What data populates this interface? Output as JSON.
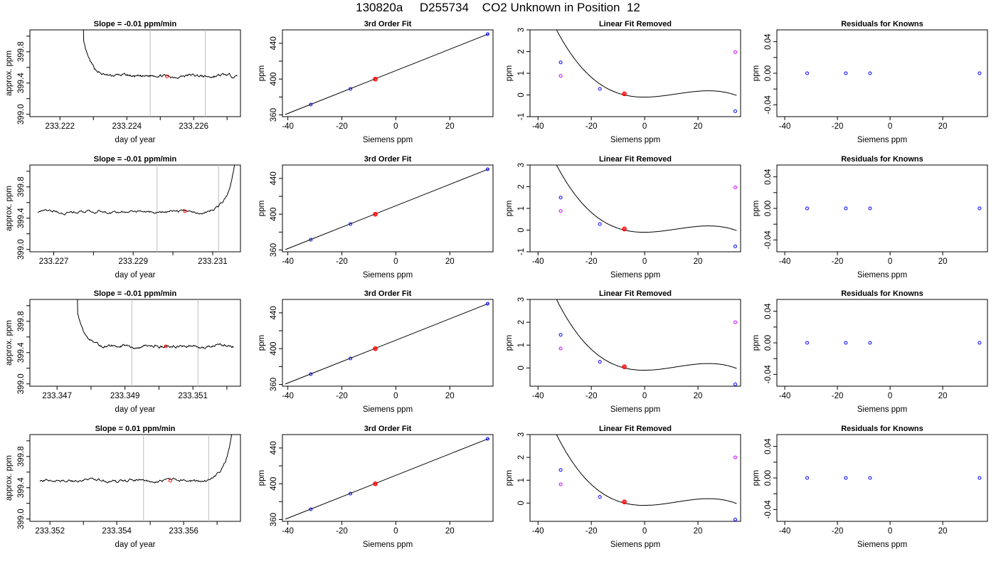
{
  "figure": {
    "title": "130820a     D255734    CO2 Unknown in Position  12",
    "colors": {
      "line": "#000000",
      "vline": "#bdbdbd",
      "blue": "#0000ff",
      "red": "#ff0000",
      "magenta": "#cc00ff"
    }
  },
  "chart_data": [
    {
      "type": "line",
      "row": 1,
      "col": 1,
      "title": "Slope =  -0.01  ppm/min",
      "xlabel": "day of year",
      "ylabel": "approx. ppm",
      "xlim": [
        233.2211,
        233.2274
      ],
      "ylim": [
        398.97,
        400.08
      ],
      "xticks": [
        233.222,
        233.224,
        233.226
      ],
      "xminor": [
        233.223,
        233.225,
        233.227
      ],
      "xticklabels": [
        "233.222",
        "233.224",
        "233.226"
      ],
      "yticks": [
        399.0,
        399.4,
        399.8
      ],
      "yminor": [
        399.2,
        399.6,
        400.0
      ],
      "yticklabels": [
        "399.0",
        "399.4",
        "399.8"
      ],
      "trace": {
        "start": 233.2226,
        "end": 233.2273,
        "base": 399.49,
        "shape": "decay",
        "amp": 0.7
      },
      "vlines": [
        233.2247,
        233.22635
      ],
      "marker": {
        "x": 233.2252,
        "y": 399.485
      }
    },
    {
      "type": "line",
      "row": 1,
      "col": 2,
      "title": "3rd Order Fit",
      "xlabel": "Siemens ppm",
      "ylabel": "ppm",
      "xlim": [
        -42,
        36
      ],
      "ylim": [
        358,
        455
      ],
      "xticks": [
        -40,
        -20,
        0,
        20
      ],
      "xticklabels": [
        "-40",
        "-20",
        "0",
        "20"
      ],
      "yticks": [
        360,
        400,
        440
      ],
      "yminor": [
        380,
        420
      ],
      "yticklabels": [
        "360",
        "400",
        "440"
      ],
      "fit": [
        -40.9,
        360.5,
        34.5,
        450.7
      ],
      "points": [
        {
          "x": -31.5,
          "y": 371.5,
          "c": "blue"
        },
        {
          "x": -16.8,
          "y": 389.0,
          "c": "blue"
        },
        {
          "x": -7.6,
          "y": 400.0,
          "c": "red"
        },
        {
          "x": 34.0,
          "y": 450.2,
          "c": "blue"
        }
      ]
    },
    {
      "type": "line",
      "row": 1,
      "col": 3,
      "title": "Linear Fit Removed",
      "xlabel": "Siemens ppm",
      "ylabel": "ppm",
      "xlim": [
        -43,
        36
      ],
      "ylim": [
        -1.0,
        3.0
      ],
      "xticks": [
        -40,
        -20,
        0,
        20
      ],
      "xticklabels": [
        "-40",
        "-20",
        "0",
        "20"
      ],
      "yticks": [
        -1,
        0,
        1,
        2,
        3
      ],
      "yticklabels": [
        "-1",
        "0",
        "1",
        "2",
        "3"
      ],
      "curve": {
        "k": 4.15e-05,
        "r": [
          9.3,
          -7.6,
          34.0
        ],
        "xmin": -40.9,
        "xmax": 34.5
      },
      "points": [
        {
          "x": -31.5,
          "y": 1.5,
          "c": "blue"
        },
        {
          "x": -16.8,
          "y": 0.28,
          "c": "blue"
        },
        {
          "x": -7.6,
          "y": 0.05,
          "c": "red"
        },
        {
          "x": 34.0,
          "y": -0.75,
          "c": "blue"
        },
        {
          "x": -31.5,
          "y": 0.88,
          "c": "magenta"
        },
        {
          "x": 34.0,
          "y": 1.97,
          "c": "magenta"
        }
      ]
    },
    {
      "type": "scatter",
      "row": 1,
      "col": 4,
      "title": "Residuals for Knowns",
      "xlabel": "Siemens ppm",
      "ylabel": "ppm",
      "xlim": [
        -43,
        37
      ],
      "ylim": [
        -0.055,
        0.055
      ],
      "xticks": [
        -40,
        -20,
        0,
        20
      ],
      "xticklabels": [
        "-40",
        "-20",
        "0",
        "20"
      ],
      "yticks": [
        -0.04,
        0.0,
        0.04
      ],
      "yminor": [
        -0.02,
        0.02
      ],
      "yticklabels": [
        "-0.04",
        "0.00",
        "0.04"
      ],
      "points": [
        {
          "x": -31.5,
          "y": 0,
          "c": "blue"
        },
        {
          "x": -16.8,
          "y": 0,
          "c": "blue"
        },
        {
          "x": -7.6,
          "y": 0,
          "c": "blue"
        },
        {
          "x": 34.0,
          "y": 0,
          "c": "blue"
        }
      ]
    },
    {
      "type": "line",
      "row": 2,
      "col": 1,
      "title": "Slope =  -0.01  ppm/min",
      "xlabel": "day of year",
      "ylabel": "approx. ppm",
      "xlim": [
        233.2264,
        233.2317
      ],
      "ylim": [
        398.97,
        400.08
      ],
      "xticks": [
        233.227,
        233.229,
        233.231
      ],
      "xminor": [
        233.228,
        233.23
      ],
      "xticklabels": [
        "233.227",
        "233.229",
        "233.231"
      ],
      "yticks": [
        399.0,
        399.4,
        399.8
      ],
      "yminor": [
        399.2,
        399.6,
        400.0
      ],
      "yticklabels": [
        "399.0",
        "399.4",
        "399.8"
      ],
      "trace": {
        "start": 233.2266,
        "end": 233.2316,
        "base": 399.48,
        "shape": "rise",
        "amp": 0.8
      },
      "vlines": [
        233.2296,
        233.23115
      ],
      "marker": {
        "x": 233.2303,
        "y": 399.49
      }
    },
    {
      "type": "line",
      "row": 2,
      "col": 2,
      "title": "3rd Order Fit",
      "xlabel": "Siemens ppm",
      "ylabel": "ppm",
      "xlim": [
        -42,
        36
      ],
      "ylim": [
        358,
        455
      ],
      "xticks": [
        -40,
        -20,
        0,
        20
      ],
      "xticklabels": [
        "-40",
        "-20",
        "0",
        "20"
      ],
      "yticks": [
        360,
        400,
        440
      ],
      "yminor": [
        380,
        420
      ],
      "yticklabels": [
        "360",
        "400",
        "440"
      ],
      "fit": [
        -40.9,
        360.5,
        34.5,
        450.7
      ],
      "points": [
        {
          "x": -31.5,
          "y": 371.5,
          "c": "blue"
        },
        {
          "x": -16.8,
          "y": 389.0,
          "c": "blue"
        },
        {
          "x": -7.6,
          "y": 400.0,
          "c": "red"
        },
        {
          "x": 34.0,
          "y": 450.2,
          "c": "blue"
        }
      ]
    },
    {
      "type": "line",
      "row": 2,
      "col": 3,
      "title": "Linear Fit Removed",
      "xlabel": "Siemens ppm",
      "ylabel": "ppm",
      "xlim": [
        -43,
        36
      ],
      "ylim": [
        -1.0,
        3.0
      ],
      "xticks": [
        -40,
        -20,
        0,
        20
      ],
      "xticklabels": [
        "-40",
        "-20",
        "0",
        "20"
      ],
      "yticks": [
        -1,
        0,
        1,
        2,
        3
      ],
      "yticklabels": [
        "-1",
        "0",
        "1",
        "2",
        "3"
      ],
      "curve": {
        "k": 4.15e-05,
        "r": [
          9.3,
          -7.6,
          34.0
        ],
        "xmin": -40.9,
        "xmax": 34.5
      },
      "points": [
        {
          "x": -31.5,
          "y": 1.5,
          "c": "blue"
        },
        {
          "x": -16.8,
          "y": 0.28,
          "c": "blue"
        },
        {
          "x": -7.6,
          "y": 0.05,
          "c": "red"
        },
        {
          "x": 34.0,
          "y": -0.75,
          "c": "blue"
        },
        {
          "x": -31.5,
          "y": 0.88,
          "c": "magenta"
        },
        {
          "x": 34.0,
          "y": 1.97,
          "c": "magenta"
        }
      ]
    },
    {
      "type": "scatter",
      "row": 2,
      "col": 4,
      "title": "Residuals for Knowns",
      "xlabel": "Siemens ppm",
      "ylabel": "ppm",
      "xlim": [
        -43,
        37
      ],
      "ylim": [
        -0.055,
        0.055
      ],
      "xticks": [
        -40,
        -20,
        0,
        20
      ],
      "xticklabels": [
        "-40",
        "-20",
        "0",
        "20"
      ],
      "yticks": [
        -0.04,
        0.0,
        0.04
      ],
      "yminor": [
        -0.02,
        0.02
      ],
      "yticklabels": [
        "-0.04",
        "0.00",
        "0.04"
      ],
      "points": [
        {
          "x": -31.5,
          "y": 0,
          "c": "blue"
        },
        {
          "x": -16.8,
          "y": 0,
          "c": "blue"
        },
        {
          "x": -7.6,
          "y": 0,
          "c": "blue"
        },
        {
          "x": 34.0,
          "y": 0,
          "c": "blue"
        }
      ]
    },
    {
      "type": "line",
      "row": 3,
      "col": 1,
      "title": "Slope =  -0.01  ppm/min",
      "xlabel": "day of year",
      "ylabel": "approx. ppm",
      "xlim": [
        233.3462,
        233.3524
      ],
      "ylim": [
        398.97,
        400.08
      ],
      "xticks": [
        233.347,
        233.349,
        233.351
      ],
      "xminor": [
        233.348,
        233.35,
        233.352
      ],
      "xticklabels": [
        "233.347",
        "233.349",
        "233.351"
      ],
      "yticks": [
        399.0,
        399.4,
        399.8
      ],
      "yminor": [
        399.2,
        399.6,
        400.0
      ],
      "yticklabels": [
        "399.0",
        "399.4",
        "399.8"
      ],
      "trace": {
        "start": 233.3475,
        "end": 233.3522,
        "base": 399.48,
        "shape": "decay",
        "amp": 0.7
      },
      "vlines": [
        233.3492,
        233.35115
      ],
      "marker": {
        "x": 233.3502,
        "y": 399.48
      }
    },
    {
      "type": "line",
      "row": 3,
      "col": 2,
      "title": "3rd Order Fit",
      "xlabel": "Siemens ppm",
      "ylabel": "ppm",
      "xlim": [
        -42,
        36
      ],
      "ylim": [
        358,
        455
      ],
      "xticks": [
        -40,
        -20,
        0,
        20
      ],
      "xticklabels": [
        "-40",
        "-20",
        "0",
        "20"
      ],
      "yticks": [
        360,
        400,
        440
      ],
      "yminor": [
        380,
        420
      ],
      "yticklabels": [
        "360",
        "400",
        "440"
      ],
      "fit": [
        -40.9,
        360.5,
        34.5,
        450.7
      ],
      "points": [
        {
          "x": -31.5,
          "y": 371.5,
          "c": "blue"
        },
        {
          "x": -16.8,
          "y": 389.0,
          "c": "blue"
        },
        {
          "x": -7.6,
          "y": 400.0,
          "c": "red"
        },
        {
          "x": 34.0,
          "y": 450.2,
          "c": "blue"
        }
      ]
    },
    {
      "type": "line",
      "row": 3,
      "col": 3,
      "title": "Linear Fit Removed",
      "xlabel": "Siemens ppm",
      "ylabel": "ppm",
      "xlim": [
        -43,
        36
      ],
      "ylim": [
        -0.8,
        3.0
      ],
      "xticks": [
        -40,
        -20,
        0,
        20
      ],
      "xticklabels": [
        "-40",
        "-20",
        "0",
        "20"
      ],
      "yticks": [
        0,
        1,
        2,
        3
      ],
      "yticklabels": [
        "0",
        "1",
        "2",
        "3"
      ],
      "curve": {
        "k": 4.15e-05,
        "r": [
          9.3,
          -7.6,
          34.0
        ],
        "xmin": -40.9,
        "xmax": 34.5
      },
      "points": [
        {
          "x": -31.5,
          "y": 1.45,
          "c": "blue"
        },
        {
          "x": -16.8,
          "y": 0.27,
          "c": "blue"
        },
        {
          "x": -7.6,
          "y": 0.05,
          "c": "red"
        },
        {
          "x": 34.0,
          "y": -0.72,
          "c": "blue"
        },
        {
          "x": -31.5,
          "y": 0.85,
          "c": "magenta"
        },
        {
          "x": 34.0,
          "y": 2.0,
          "c": "magenta"
        }
      ]
    },
    {
      "type": "scatter",
      "row": 3,
      "col": 4,
      "title": "Residuals for Knowns",
      "xlabel": "Siemens ppm",
      "ylabel": "ppm",
      "xlim": [
        -43,
        37
      ],
      "ylim": [
        -0.055,
        0.055
      ],
      "xticks": [
        -40,
        -20,
        0,
        20
      ],
      "xticklabels": [
        "-40",
        "-20",
        "0",
        "20"
      ],
      "yticks": [
        -0.04,
        0.0,
        0.04
      ],
      "yminor": [
        -0.02,
        0.02
      ],
      "yticklabels": [
        "-0.04",
        "0.00",
        "0.04"
      ],
      "points": [
        {
          "x": -31.5,
          "y": 0,
          "c": "blue"
        },
        {
          "x": -16.8,
          "y": 0,
          "c": "blue"
        },
        {
          "x": -7.6,
          "y": 0,
          "c": "blue"
        },
        {
          "x": 34.0,
          "y": 0,
          "c": "blue"
        }
      ]
    },
    {
      "type": "line",
      "row": 4,
      "col": 1,
      "title": "Slope =  0.01  ppm/min",
      "xlabel": "day of year",
      "ylabel": "approx. ppm",
      "xlim": [
        233.3514,
        233.3577
      ],
      "ylim": [
        398.97,
        400.08
      ],
      "xticks": [
        233.352,
        233.354,
        233.356
      ],
      "xminor": [
        233.353,
        233.355,
        233.357
      ],
      "xticklabels": [
        "233.352",
        "233.354",
        "233.356"
      ],
      "yticks": [
        399.0,
        399.4,
        399.8
      ],
      "yminor": [
        399.2,
        399.6,
        400.0
      ],
      "yticklabels": [
        "399.0",
        "399.4",
        "399.8"
      ],
      "trace": {
        "start": 233.3517,
        "end": 233.3575,
        "base": 399.49,
        "shape": "rise",
        "amp": 0.8
      },
      "vlines": [
        233.3548,
        233.35675
      ],
      "marker": {
        "x": 233.3556,
        "y": 399.49
      }
    },
    {
      "type": "line",
      "row": 4,
      "col": 2,
      "title": "3rd Order Fit",
      "xlabel": "Siemens ppm",
      "ylabel": "ppm",
      "xlim": [
        -42,
        36
      ],
      "ylim": [
        358,
        455
      ],
      "xticks": [
        -40,
        -20,
        0,
        20
      ],
      "xticklabels": [
        "-40",
        "-20",
        "0",
        "20"
      ],
      "yticks": [
        360,
        400,
        440
      ],
      "yminor": [
        380,
        420
      ],
      "yticklabels": [
        "360",
        "400",
        "440"
      ],
      "fit": [
        -40.9,
        360.5,
        34.5,
        450.7
      ],
      "points": [
        {
          "x": -31.5,
          "y": 371.5,
          "c": "blue"
        },
        {
          "x": -16.8,
          "y": 389.0,
          "c": "blue"
        },
        {
          "x": -7.6,
          "y": 400.0,
          "c": "red"
        },
        {
          "x": 34.0,
          "y": 450.2,
          "c": "blue"
        }
      ]
    },
    {
      "type": "line",
      "row": 4,
      "col": 3,
      "title": "Linear Fit Removed",
      "xlabel": "Siemens ppm",
      "ylabel": "ppm",
      "xlim": [
        -43,
        36
      ],
      "ylim": [
        -0.8,
        3.0
      ],
      "xticks": [
        -40,
        -20,
        0,
        20
      ],
      "xticklabels": [
        "-40",
        "-20",
        "0",
        "20"
      ],
      "yticks": [
        0,
        1,
        2,
        3
      ],
      "yticklabels": [
        "0",
        "1",
        "2",
        "3"
      ],
      "curve": {
        "k": 4.15e-05,
        "r": [
          9.3,
          -7.6,
          34.0
        ],
        "xmin": -40.9,
        "xmax": 34.5
      },
      "points": [
        {
          "x": -31.5,
          "y": 1.45,
          "c": "blue"
        },
        {
          "x": -16.8,
          "y": 0.27,
          "c": "blue"
        },
        {
          "x": -7.6,
          "y": 0.05,
          "c": "red"
        },
        {
          "x": 34.0,
          "y": -0.72,
          "c": "blue"
        },
        {
          "x": -31.5,
          "y": 0.82,
          "c": "magenta"
        },
        {
          "x": 34.0,
          "y": 2.0,
          "c": "magenta"
        }
      ]
    },
    {
      "type": "scatter",
      "row": 4,
      "col": 4,
      "title": "Residuals for Knowns",
      "xlabel": "Siemens ppm",
      "ylabel": "ppm",
      "xlim": [
        -43,
        37
      ],
      "ylim": [
        -0.055,
        0.055
      ],
      "xticks": [
        -40,
        -20,
        0,
        20
      ],
      "xticklabels": [
        "-40",
        "-20",
        "0",
        "20"
      ],
      "yticks": [
        -0.04,
        0.0,
        0.04
      ],
      "yminor": [
        -0.02,
        0.02
      ],
      "yticklabels": [
        "-0.04",
        "0.00",
        "0.04"
      ],
      "points": [
        {
          "x": -31.5,
          "y": 0,
          "c": "blue"
        },
        {
          "x": -16.8,
          "y": 0,
          "c": "blue"
        },
        {
          "x": -7.6,
          "y": 0,
          "c": "blue"
        },
        {
          "x": 34.0,
          "y": 0,
          "c": "blue"
        }
      ]
    }
  ]
}
